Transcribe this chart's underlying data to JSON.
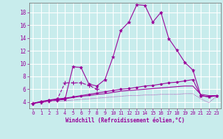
{
  "xlabel": "Windchill (Refroidissement éolien,°C)",
  "background_color": "#c8ecec",
  "grid_color": "#ffffff",
  "line_color": "#990099",
  "x_hours": [
    0,
    1,
    2,
    3,
    4,
    5,
    6,
    7,
    8,
    9,
    10,
    11,
    12,
    13,
    14,
    15,
    16,
    17,
    18,
    19,
    20,
    21,
    22,
    23
  ],
  "series1": [
    3.8,
    4.0,
    4.2,
    4.3,
    4.4,
    9.5,
    9.4,
    6.8,
    6.5,
    7.5,
    11.0,
    15.2,
    16.5,
    19.2,
    19.1,
    16.5,
    18.0,
    13.9,
    12.1,
    10.2,
    9.0,
    5.0,
    4.8,
    5.0
  ],
  "series2": [
    3.8,
    4.0,
    4.2,
    4.3,
    7.0,
    7.0,
    7.0,
    6.6,
    6.0,
    null,
    null,
    null,
    null,
    null,
    null,
    null,
    null,
    null,
    null,
    null,
    null,
    null,
    null,
    null
  ],
  "series3": [
    3.8,
    4.1,
    4.3,
    4.5,
    4.6,
    4.8,
    5.0,
    5.2,
    5.4,
    5.6,
    5.8,
    6.0,
    6.1,
    6.3,
    6.5,
    6.6,
    6.8,
    7.0,
    7.1,
    7.3,
    7.5,
    5.0,
    4.8,
    5.0
  ],
  "series4": [
    3.8,
    4.0,
    4.2,
    4.4,
    4.5,
    4.7,
    4.9,
    5.0,
    5.2,
    5.3,
    5.5,
    5.7,
    5.8,
    5.9,
    6.0,
    6.1,
    6.2,
    6.3,
    6.4,
    6.5,
    6.5,
    5.2,
    5.0,
    5.0
  ],
  "series5": [
    3.8,
    3.9,
    4.0,
    4.1,
    4.2,
    4.3,
    4.4,
    4.5,
    4.6,
    4.7,
    4.8,
    4.9,
    5.0,
    5.0,
    5.1,
    5.1,
    5.2,
    5.2,
    5.2,
    5.3,
    5.3,
    4.5,
    3.9,
    4.9
  ],
  "ylim": [
    3.0,
    19.5
  ],
  "xlim": [
    -0.5,
    23.5
  ],
  "yticks": [
    4,
    6,
    8,
    10,
    12,
    14,
    16,
    18
  ],
  "xticks": [
    0,
    1,
    2,
    3,
    4,
    5,
    6,
    7,
    8,
    9,
    10,
    11,
    12,
    13,
    14,
    15,
    16,
    17,
    18,
    19,
    20,
    21,
    22,
    23
  ]
}
